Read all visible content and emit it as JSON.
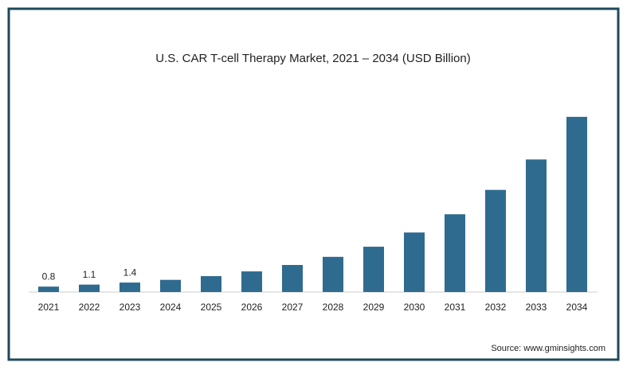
{
  "chart_data": {
    "type": "bar",
    "title": "U.S. CAR T-cell Therapy Market, 2021 – 2034 (USD Billion)",
    "categories": [
      "2021",
      "2022",
      "2023",
      "2024",
      "2025",
      "2026",
      "2027",
      "2028",
      "2029",
      "2030",
      "2031",
      "2032",
      "2033",
      "2034"
    ],
    "values": [
      0.8,
      1.1,
      1.4,
      1.8,
      2.35,
      3.05,
      4.0,
      5.2,
      6.7,
      8.8,
      11.5,
      15.1,
      19.6,
      25.9
    ],
    "value_labels": [
      "0.8",
      "1.1",
      "1.4",
      null,
      null,
      null,
      null,
      null,
      null,
      null,
      null,
      null,
      null,
      null
    ],
    "color": "#2f6b8f",
    "source": "Source: www.gminsights.com"
  }
}
